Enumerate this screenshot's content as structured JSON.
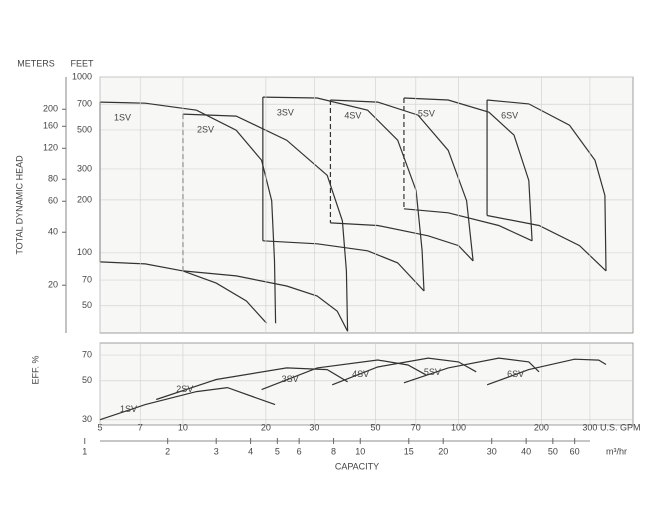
{
  "chart_data": [
    {
      "type": "pump-head",
      "xscale": "log",
      "yscale": "log",
      "xlim": [
        5,
        430
      ],
      "ylim": [
        35,
        1000
      ],
      "yticks": [
        50,
        70,
        100,
        200,
        300,
        500,
        700,
        1000
      ],
      "y2lim": [
        10.7,
        305
      ],
      "y2ticks": [
        20,
        40,
        60,
        80,
        120,
        160,
        200
      ],
      "yunit": "FEET",
      "y2unit": "METERS",
      "ylabel": "TOTAL DYNAMIC HEAD",
      "grid": true,
      "series": [
        {
          "name": "1SV",
          "color": "#333333",
          "dash": false,
          "x": [
            5,
            7.3,
            11.2,
            15.6,
            19.3,
            21.0,
            21.5,
            21.7
          ],
          "values": [
            720,
            710,
            647,
            498,
            336,
            198,
            90,
            39.8
          ],
          "bottom_x": [
            5,
            7.3,
            10,
            13.2,
            17.0,
            20.1
          ],
          "bottom_values": [
            88.8,
            86.5,
            78.9,
            67.3,
            53.2,
            39.8
          ]
        },
        {
          "name": "2SV",
          "color": "#333333",
          "dash": true,
          "x": [
            10,
            15.6,
            23.8,
            33.4,
            37.9,
            39.2,
            39.6
          ],
          "values": [
            615,
            599,
            437,
            276,
            152,
            78.9,
            35.8
          ],
          "bottom_x": [
            10,
            15.6,
            23.8,
            30.7,
            36.3,
            39.6
          ],
          "bottom_values": [
            78.9,
            73.9,
            64.8,
            56.8,
            46.6,
            35.8
          ]
        },
        {
          "name": "3SV",
          "color": "#333333",
          "dash": false,
          "x": [
            19.5,
            30.7,
            46.8,
            60.2,
            70.2,
            73.8,
            75.0
          ],
          "values": [
            769,
            760,
            647,
            437,
            226,
            103,
            60.7
          ],
          "bottom_x": [
            19.5,
            30.7,
            46.8,
            60.2,
            75.0
          ],
          "bottom_values": [
            117,
            112.6,
            102.7,
            87.7,
            60.7
          ]
        },
        {
          "name": "4SV",
          "color": "#333333",
          "dash": true,
          "x": [
            34.3,
            50.9,
            71.3,
            91.8,
            107,
            113
          ],
          "values": [
            740,
            720,
            607,
            383,
            198,
            90
          ],
          "bottom_x": [
            34.3,
            50.9,
            77.6,
            100,
            113
          ],
          "bottom_values": [
            148,
            143,
            125,
            110,
            90
          ]
        },
        {
          "name": "5SV",
          "color": "#333333",
          "dash": true,
          "x": [
            63.4,
            91.8,
            129,
            159,
            180,
            185
          ],
          "values": [
            760,
            740,
            631,
            467,
            258,
            117
          ],
          "bottom_x": [
            63.4,
            91.8,
            140,
            185
          ],
          "bottom_values": [
            178,
            169,
            143,
            117
          ]
        },
        {
          "name": "6SV",
          "color": "#333333",
          "dash": false,
          "x": [
            127,
            180,
            253,
            313,
            340,
            343
          ],
          "values": [
            740,
            703,
            532,
            336,
            212,
            78.9
          ],
          "bottom_x": [
            127,
            196,
            275,
            343
          ],
          "bottom_values": [
            163,
            143,
            110,
            78.9
          ]
        }
      ]
    },
    {
      "type": "line",
      "xscale": "log",
      "yscale": "log",
      "xlim": [
        5,
        430
      ],
      "ylim": [
        28,
        82
      ],
      "yticks": [
        30,
        50,
        70
      ],
      "ylabel": "EFF. %",
      "xticks": [
        5,
        7,
        10,
        20,
        30,
        50,
        70,
        100,
        200,
        300
      ],
      "xunit": "U.S. GPM",
      "x2lim": [
        1.136,
        97.7
      ],
      "x2ticks": [
        1,
        2,
        3,
        4,
        5,
        6,
        8,
        10,
        15,
        20,
        30,
        40,
        50,
        60
      ],
      "x2unit": "m³/hr",
      "xlabel": "CAPACITY",
      "grid": true,
      "series": [
        {
          "name": "1SV",
          "color": "#333333",
          "x": [
            5,
            7.3,
            11.2,
            14.5,
            21.6
          ],
          "values": [
            30,
            36.6,
            43.4,
            45.7,
            36.6
          ]
        },
        {
          "name": "2SV",
          "color": "#333333",
          "x": [
            8.0,
            13.2,
            23.8,
            33.4,
            39.6
          ],
          "values": [
            39.1,
            50.8,
            59.2,
            57.9,
            49.3
          ]
        },
        {
          "name": "3SV",
          "color": "#333333",
          "x": [
            19.3,
            30.7,
            50.9,
            65.6,
            76.0
          ],
          "values": [
            44.5,
            59.2,
            65.6,
            61.5,
            54.1
          ]
        },
        {
          "name": "4SV",
          "color": "#333333",
          "x": [
            34.8,
            50.9,
            77.6,
            100,
            116
          ],
          "values": [
            47.4,
            59.9,
            67.3,
            64.0,
            56.2
          ]
        },
        {
          "name": "5SV",
          "color": "#333333",
          "x": [
            63.4,
            91.8,
            140,
            180,
            196
          ],
          "values": [
            48.7,
            59.2,
            67.3,
            64.0,
            56.2
          ]
        },
        {
          "name": "6SV",
          "color": "#333333",
          "x": [
            127,
            180,
            264,
            323,
            343
          ],
          "values": [
            47.4,
            57.9,
            66.3,
            65.5,
            61.9
          ]
        }
      ]
    }
  ]
}
